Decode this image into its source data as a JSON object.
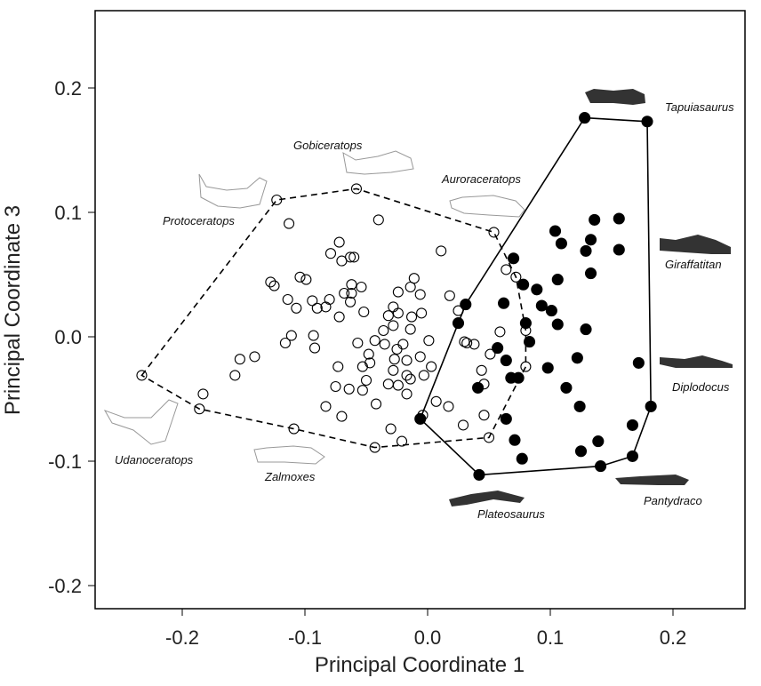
{
  "chart_data": {
    "type": "scatter",
    "title": "",
    "xlabel": "Principal Coordinate 1",
    "ylabel": "Principal Coordinate 3",
    "xlim": [
      -0.27,
      0.26
    ],
    "ylim": [
      -0.22,
      0.26
    ],
    "xticks": [
      -0.2,
      -0.1,
      0.0,
      0.1,
      0.2
    ],
    "xtick_labels": [
      "-0.2",
      "-0.1",
      "0.0",
      "0.1",
      "0.2"
    ],
    "yticks": [
      -0.2,
      -0.1,
      0.0,
      0.1,
      0.2
    ],
    "ytick_labels": [
      "-0.2",
      "-0.1",
      "0.0",
      "0.1",
      "0.2"
    ],
    "grid": false,
    "series": [
      {
        "marker": "open-circle",
        "hull_style": "dashed",
        "hull": [
          [
            -0.233,
            -0.031
          ],
          [
            -0.123,
            0.11
          ],
          [
            -0.058,
            0.119
          ],
          [
            0.054,
            0.084
          ],
          [
            0.072,
            0.048
          ],
          [
            0.08,
            0.005
          ],
          [
            0.08,
            -0.024
          ],
          [
            0.05,
            -0.081
          ],
          [
            -0.043,
            -0.089
          ],
          [
            -0.109,
            -0.074
          ],
          [
            -0.186,
            -0.058
          ]
        ],
        "points": [
          [
            -0.113,
            0.091
          ],
          [
            -0.04,
            0.094
          ],
          [
            -0.072,
            0.076
          ],
          [
            -0.079,
            0.067
          ],
          [
            -0.07,
            0.061
          ],
          [
            -0.063,
            0.064
          ],
          [
            -0.06,
            0.064
          ],
          [
            0.011,
            0.069
          ],
          [
            -0.128,
            0.044
          ],
          [
            -0.125,
            0.041
          ],
          [
            -0.104,
            0.048
          ],
          [
            -0.099,
            0.046
          ],
          [
            -0.114,
            0.03
          ],
          [
            -0.107,
            0.023
          ],
          [
            -0.094,
            0.029
          ],
          [
            -0.09,
            0.023
          ],
          [
            -0.083,
            0.024
          ],
          [
            -0.08,
            0.03
          ],
          [
            -0.062,
            0.042
          ],
          [
            -0.054,
            0.04
          ],
          [
            -0.068,
            0.035
          ],
          [
            -0.062,
            0.035
          ],
          [
            -0.063,
            0.028
          ],
          [
            -0.072,
            0.016
          ],
          [
            -0.052,
            0.02
          ],
          [
            -0.024,
            0.036
          ],
          [
            -0.014,
            0.04
          ],
          [
            -0.011,
            0.047
          ],
          [
            -0.006,
            0.034
          ],
          [
            0.018,
            0.033
          ],
          [
            -0.028,
            0.024
          ],
          [
            -0.032,
            0.017
          ],
          [
            -0.024,
            0.019
          ],
          [
            -0.028,
            0.009
          ],
          [
            -0.013,
            0.016
          ],
          [
            -0.005,
            0.019
          ],
          [
            -0.036,
            0.005
          ],
          [
            -0.014,
            0.006
          ],
          [
            0.025,
            0.021
          ],
          [
            -0.111,
            0.001
          ],
          [
            -0.116,
            -0.005
          ],
          [
            -0.093,
            0.001
          ],
          [
            -0.092,
            -0.009
          ],
          [
            -0.141,
            -0.016
          ],
          [
            -0.057,
            -0.005
          ],
          [
            -0.043,
            -0.003
          ],
          [
            -0.035,
            -0.006
          ],
          [
            -0.02,
            -0.006
          ],
          [
            -0.025,
            -0.01
          ],
          [
            0.001,
            -0.003
          ],
          [
            0.03,
            -0.004
          ],
          [
            0.038,
            -0.006
          ],
          [
            -0.048,
            -0.014
          ],
          [
            -0.047,
            -0.021
          ],
          [
            -0.053,
            -0.024
          ],
          [
            -0.073,
            -0.024
          ],
          [
            -0.027,
            -0.018
          ],
          [
            -0.017,
            -0.019
          ],
          [
            -0.006,
            -0.016
          ],
          [
            0.003,
            -0.024
          ],
          [
            -0.003,
            -0.031
          ],
          [
            -0.017,
            -0.031
          ],
          [
            -0.028,
            -0.027
          ],
          [
            -0.05,
            -0.035
          ],
          [
            -0.053,
            -0.043
          ],
          [
            -0.064,
            -0.042
          ],
          [
            -0.075,
            -0.04
          ],
          [
            -0.032,
            -0.038
          ],
          [
            -0.024,
            -0.039
          ],
          [
            -0.014,
            -0.034
          ],
          [
            -0.017,
            -0.046
          ],
          [
            0.059,
            0.004
          ],
          [
            0.051,
            -0.014
          ],
          [
            0.044,
            -0.027
          ],
          [
            0.046,
            -0.038
          ],
          [
            -0.083,
            -0.056
          ],
          [
            -0.042,
            -0.054
          ],
          [
            -0.07,
            -0.064
          ],
          [
            0.007,
            -0.052
          ],
          [
            0.017,
            -0.056
          ],
          [
            -0.03,
            -0.074
          ],
          [
            -0.021,
            -0.084
          ],
          [
            0.046,
            -0.063
          ],
          [
            0.029,
            -0.071
          ],
          [
            -0.004,
            -0.063
          ],
          [
            0.032,
            -0.005
          ],
          [
            0.064,
            0.054
          ],
          [
            -0.153,
            -0.018
          ],
          [
            -0.157,
            -0.031
          ],
          [
            -0.183,
            -0.046
          ],
          [
            -0.233,
            -0.031
          ],
          [
            -0.123,
            0.11
          ],
          [
            -0.058,
            0.119
          ],
          [
            0.054,
            0.084
          ],
          [
            0.072,
            0.048
          ],
          [
            0.08,
            0.005
          ],
          [
            0.08,
            -0.024
          ],
          [
            0.05,
            -0.081
          ],
          [
            -0.043,
            -0.089
          ],
          [
            -0.109,
            -0.074
          ],
          [
            -0.186,
            -0.058
          ]
        ]
      },
      {
        "marker": "filled-circle",
        "hull_style": "solid",
        "hull": [
          [
            0.128,
            0.176
          ],
          [
            0.179,
            0.173
          ],
          [
            0.182,
            -0.056
          ],
          [
            0.167,
            -0.096
          ],
          [
            0.141,
            -0.104
          ],
          [
            0.042,
            -0.111
          ],
          [
            -0.006,
            -0.066
          ],
          [
            0.025,
            0.011
          ],
          [
            0.031,
            0.026
          ]
        ],
        "points": [
          [
            0.136,
            0.094
          ],
          [
            0.156,
            0.095
          ],
          [
            0.104,
            0.085
          ],
          [
            0.109,
            0.075
          ],
          [
            0.133,
            0.078
          ],
          [
            0.129,
            0.069
          ],
          [
            0.156,
            0.07
          ],
          [
            0.133,
            0.051
          ],
          [
            0.106,
            0.046
          ],
          [
            0.07,
            0.063
          ],
          [
            0.078,
            0.042
          ],
          [
            0.089,
            0.038
          ],
          [
            0.062,
            0.027
          ],
          [
            0.093,
            0.025
          ],
          [
            0.101,
            0.021
          ],
          [
            0.106,
            0.01
          ],
          [
            0.129,
            0.006
          ],
          [
            0.08,
            0.011
          ],
          [
            0.083,
            -0.004
          ],
          [
            0.057,
            -0.009
          ],
          [
            0.064,
            -0.019
          ],
          [
            0.122,
            -0.017
          ],
          [
            0.098,
            -0.025
          ],
          [
            0.172,
            -0.021
          ],
          [
            0.068,
            -0.033
          ],
          [
            0.074,
            -0.033
          ],
          [
            0.041,
            -0.041
          ],
          [
            0.113,
            -0.041
          ],
          [
            0.124,
            -0.056
          ],
          [
            0.064,
            -0.066
          ],
          [
            0.167,
            -0.071
          ],
          [
            0.071,
            -0.083
          ],
          [
            0.139,
            -0.084
          ],
          [
            0.077,
            -0.098
          ],
          [
            0.125,
            -0.092
          ],
          [
            0.128,
            0.176
          ],
          [
            0.179,
            0.173
          ],
          [
            0.182,
            -0.056
          ],
          [
            0.167,
            -0.096
          ],
          [
            0.141,
            -0.104
          ],
          [
            0.042,
            -0.111
          ],
          [
            -0.006,
            -0.066
          ],
          [
            0.025,
            0.011
          ],
          [
            0.031,
            0.026
          ]
        ]
      }
    ],
    "annotations": [
      {
        "text": "Tapuiasaurus",
        "silhouette": "dark"
      },
      {
        "text": "Giraffatitan",
        "silhouette": "dark"
      },
      {
        "text": "Diplodocus",
        "silhouette": "dark"
      },
      {
        "text": "Pantydraco",
        "silhouette": "dark"
      },
      {
        "text": "Plateosaurus",
        "silhouette": "dark"
      },
      {
        "text": "Zalmoxes",
        "silhouette": "outline"
      },
      {
        "text": "Udanoceratops",
        "silhouette": "outline"
      },
      {
        "text": "Protoceratops",
        "silhouette": "outline"
      },
      {
        "text": "Gobiceratops",
        "silhouette": "outline"
      },
      {
        "text": "Auroraceratops",
        "silhouette": "outline"
      }
    ],
    "colors": {
      "open": "#000000",
      "filled": "#000000",
      "silhouette_dark": "#333333",
      "silhouette_outline": "#999999"
    }
  }
}
